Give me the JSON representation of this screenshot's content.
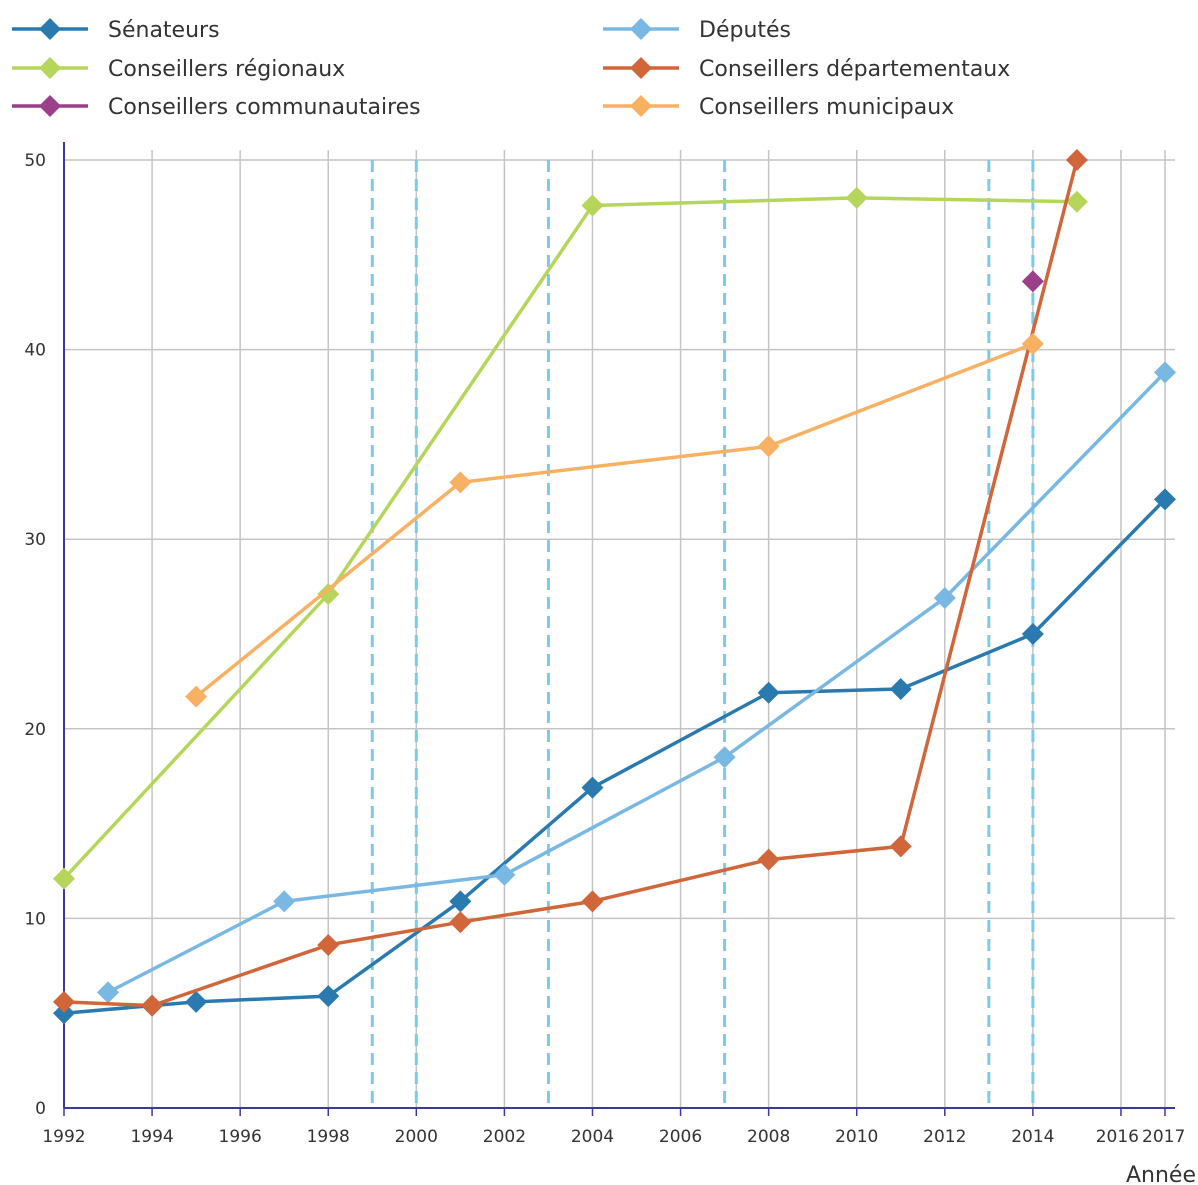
{
  "chart_data": {
    "type": "line",
    "title": "",
    "xlabel": "Année",
    "ylabel": "",
    "xlim": [
      1992,
      2017
    ],
    "ylim": [
      0,
      50
    ],
    "grid": true,
    "legend_position": "top",
    "x_ticks": [
      1992,
      1994,
      1996,
      1998,
      2000,
      2002,
      2004,
      2006,
      2008,
      2010,
      2012,
      2014,
      2016,
      2017
    ],
    "x_tick_labels": [
      "1992",
      "1994",
      "1996",
      "1998",
      "2000",
      "2002",
      "2004",
      "2006",
      "2008",
      "2010",
      "2012",
      "2014",
      "2016",
      "2017"
    ],
    "y_ticks": [
      0,
      10,
      20,
      30,
      40,
      50
    ],
    "y_tick_labels": [
      "0",
      "10",
      "20",
      "30",
      "40",
      "50"
    ],
    "dashed_year_markers": [
      1999,
      2000,
      2003,
      2007,
      2013,
      2014
    ],
    "marker_line_color": "#7ec8e8",
    "series": [
      {
        "name": "Sénateurs",
        "color": "#2a7ab0",
        "points": [
          [
            1992,
            5.0
          ],
          [
            1994,
            5.4
          ],
          [
            1995,
            5.6
          ],
          [
            1998,
            5.9
          ],
          [
            2001,
            10.9
          ],
          [
            2004,
            16.9
          ],
          [
            2008,
            21.9
          ],
          [
            2011,
            22.1
          ],
          [
            2014,
            25.0
          ],
          [
            2017,
            32.1
          ]
        ]
      },
      {
        "name": "Députés",
        "color": "#7ab8e4",
        "points": [
          [
            1993,
            6.1
          ],
          [
            1997,
            10.9
          ],
          [
            2002,
            12.3
          ],
          [
            2007,
            18.5
          ],
          [
            2012,
            26.9
          ],
          [
            2017,
            38.8
          ]
        ]
      },
      {
        "name": "Conseillers régionaux",
        "color": "#b5d65a",
        "points": [
          [
            1992,
            12.1
          ],
          [
            1998,
            27.1
          ],
          [
            2004,
            47.6
          ],
          [
            2010,
            48.0
          ],
          [
            2015,
            47.8
          ]
        ]
      },
      {
        "name": "Conseillers départementaux",
        "color": "#d0663a",
        "points": [
          [
            1992,
            5.6
          ],
          [
            1994,
            5.4
          ],
          [
            1998,
            8.6
          ],
          [
            2001,
            9.8
          ],
          [
            2004,
            10.9
          ],
          [
            2008,
            13.1
          ],
          [
            2011,
            13.8
          ],
          [
            2015,
            50.0
          ]
        ]
      },
      {
        "name": "Conseillers communautaires",
        "color": "#9b3f8a",
        "points": [
          [
            2014,
            43.6
          ]
        ]
      },
      {
        "name": "Conseillers municipaux",
        "color": "#f8b062",
        "points": [
          [
            1995,
            21.7
          ],
          [
            2001,
            33.0
          ],
          [
            2008,
            34.9
          ],
          [
            2014,
            40.3
          ]
        ]
      }
    ]
  }
}
